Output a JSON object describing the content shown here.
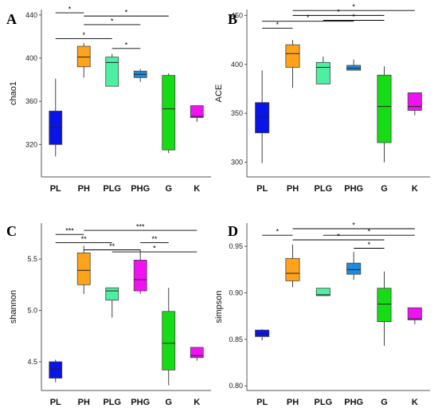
{
  "chart_data": [
    {
      "type": "box",
      "panel": "A",
      "ylabel": "chao1",
      "ylim": [
        290,
        445
      ],
      "yticks": [
        320,
        360,
        400,
        440
      ],
      "categories": [
        "PL",
        "PH",
        "PLG",
        "PHG",
        "G",
        "K"
      ],
      "colors": [
        "#0a14e6",
        "#ffa31a",
        "#4cf0a0",
        "#1e8be0",
        "#16dc16",
        "#f012f0"
      ],
      "boxes": [
        {
          "min": 309,
          "q1": 320,
          "median": 336,
          "q3": 351,
          "max": 381
        },
        {
          "min": 382,
          "q1": 392,
          "median": 401,
          "q3": 411,
          "max": 414
        },
        {
          "min": 374,
          "q1": 374,
          "median": 396,
          "q3": 401,
          "max": 404
        },
        {
          "min": 378,
          "q1": 382,
          "median": 385,
          "q3": 388,
          "max": 390
        },
        {
          "min": 312,
          "q1": 315,
          "median": 353,
          "q3": 384,
          "max": 386
        },
        {
          "min": 341,
          "q1": 345,
          "median": 346,
          "q3": 356,
          "max": 356
        }
      ],
      "significance": [
        {
          "from": "PL",
          "to": "PH",
          "label": "*",
          "y": 442
        },
        {
          "from": "PH",
          "to": "G",
          "label": "*",
          "y": 439
        },
        {
          "from": "PL",
          "to": "PLG",
          "label": "*",
          "y": 418
        },
        {
          "from": "PH",
          "to": "PHG",
          "label": "*",
          "y": 431
        },
        {
          "from": "PLG",
          "to": "PHG",
          "label": "*",
          "y": 409
        }
      ]
    },
    {
      "type": "box",
      "panel": "B",
      "ylabel": "ACE",
      "ylim": [
        285,
        456
      ],
      "yticks": [
        300,
        350,
        400,
        450
      ],
      "categories": [
        "PL",
        "PH",
        "PLG",
        "PHG",
        "G",
        "K"
      ],
      "colors": [
        "#0a14e6",
        "#ffa31a",
        "#4cf0a0",
        "#1e8be0",
        "#16dc16",
        "#f012f0"
      ],
      "boxes": [
        {
          "min": 299,
          "q1": 330,
          "median": 346,
          "q3": 361,
          "max": 394
        },
        {
          "min": 376,
          "q1": 397,
          "median": 411,
          "q3": 420,
          "max": 425
        },
        {
          "min": 380,
          "q1": 380,
          "median": 397,
          "q3": 402,
          "max": 408
        },
        {
          "min": 394,
          "q1": 394,
          "median": 396,
          "q3": 399,
          "max": 405
        },
        {
          "min": 300,
          "q1": 320,
          "median": 357,
          "q3": 389,
          "max": 398
        },
        {
          "min": 348,
          "q1": 353,
          "median": 357,
          "q3": 371,
          "max": 371
        }
      ],
      "significance": [
        {
          "from": "PL",
          "to": "PH",
          "label": "*",
          "y": 437
        },
        {
          "from": "PL",
          "to": "PHG",
          "label": "*",
          "y": 444
        },
        {
          "from": "PH",
          "to": "G",
          "label": "*",
          "y": 450
        },
        {
          "from": "PH",
          "to": "K",
          "label": "*",
          "y": 455
        },
        {
          "from": "PLG",
          "to": "G",
          "label": "*",
          "y": 445
        }
      ]
    },
    {
      "type": "box",
      "panel": "C",
      "ylabel": "shannon",
      "ylim": [
        4.22,
        5.85
      ],
      "yticks": [
        4.5,
        5.0,
        5.5
      ],
      "yticklabels": [
        "4.5",
        "5.0",
        "5.5"
      ],
      "categories": [
        "PL",
        "PH",
        "PLG",
        "PHG",
        "G",
        "K"
      ],
      "colors": [
        "#0a14e6",
        "#ffa31a",
        "#ffb3d4",
        "#ffa31a",
        "#16dc16",
        "#f012f0"
      ],
      "box_fills": [
        "#0a14e6",
        "#ffa31a",
        "#4cf0a0",
        "#f012f0",
        "#16dc16",
        "#f012f0"
      ],
      "boxes": [
        {
          "min": 4.3,
          "q1": 4.34,
          "median": 4.43,
          "q3": 4.5,
          "max": 4.52
        },
        {
          "min": 5.16,
          "q1": 5.25,
          "median": 5.39,
          "q3": 5.56,
          "max": 5.63
        },
        {
          "min": 4.93,
          "q1": 5.1,
          "median": 5.19,
          "q3": 5.22,
          "max": 5.22
        },
        {
          "min": 5.16,
          "q1": 5.19,
          "median": 5.3,
          "q3": 5.49,
          "max": 5.59
        },
        {
          "min": 4.27,
          "q1": 4.42,
          "median": 4.68,
          "q3": 4.99,
          "max": 5.22
        },
        {
          "min": 4.51,
          "q1": 4.54,
          "median": 4.56,
          "q3": 4.64,
          "max": 4.64
        }
      ],
      "significance": [
        {
          "from": "PL",
          "to": "PH",
          "label": "***",
          "y": 5.74
        },
        {
          "from": "PL",
          "to": "PLG",
          "label": "**",
          "y": 5.66
        },
        {
          "from": "PH",
          "to": "K",
          "label": "***",
          "y": 5.78
        },
        {
          "from": "PH",
          "to": "PHG",
          "label": "**",
          "y": 5.59
        },
        {
          "from": "PHG",
          "to": "G",
          "label": "**",
          "y": 5.66
        },
        {
          "from": "PLG",
          "to": "K",
          "label": "*",
          "y": 5.57
        }
      ]
    },
    {
      "type": "box",
      "panel": "D",
      "ylabel": "simpson",
      "ylim": [
        0.795,
        0.975
      ],
      "yticks": [
        0.8,
        0.85,
        0.9,
        0.95
      ],
      "yticklabels": [
        "0.80",
        "0.85",
        "0.90",
        "0.95"
      ],
      "categories": [
        "PL",
        "PH",
        "PLG",
        "PHG",
        "G",
        "K"
      ],
      "colors": [
        "#0a14e6",
        "#ffa31a",
        "#4cf0a0",
        "#1e8be0",
        "#16dc16",
        "#f012f0"
      ],
      "boxes": [
        {
          "min": 0.849,
          "q1": 0.853,
          "median": 0.856,
          "q3": 0.86,
          "max": 0.861
        },
        {
          "min": 0.906,
          "q1": 0.913,
          "median": 0.921,
          "q3": 0.937,
          "max": 0.952
        },
        {
          "min": 0.897,
          "q1": 0.897,
          "median": 0.898,
          "q3": 0.905,
          "max": 0.905
        },
        {
          "min": 0.914,
          "q1": 0.92,
          "median": 0.925,
          "q3": 0.932,
          "max": 0.944
        },
        {
          "min": 0.843,
          "q1": 0.869,
          "median": 0.888,
          "q3": 0.905,
          "max": 0.923
        },
        {
          "min": 0.866,
          "q1": 0.871,
          "median": 0.872,
          "q3": 0.884,
          "max": 0.884
        }
      ],
      "significance": [
        {
          "from": "PL",
          "to": "PH",
          "label": "*",
          "y": 0.962
        },
        {
          "from": "PH",
          "to": "G",
          "label": "*",
          "y": 0.957
        },
        {
          "from": "PH",
          "to": "K",
          "label": "*",
          "y": 0.969
        },
        {
          "from": "PLG",
          "to": "K",
          "label": "*",
          "y": 0.962
        },
        {
          "from": "PHG",
          "to": "G",
          "label": "*",
          "y": 0.948
        }
      ]
    }
  ]
}
